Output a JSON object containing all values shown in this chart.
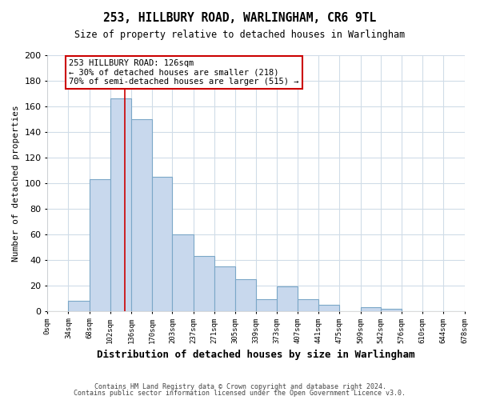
{
  "title": "253, HILLBURY ROAD, WARLINGHAM, CR6 9TL",
  "subtitle": "Size of property relative to detached houses in Warlingham",
  "xlabel": "Distribution of detached houses by size in Warlingham",
  "ylabel": "Number of detached properties",
  "bar_color": "#c8d8ed",
  "bar_edge_color": "#7ba7c8",
  "marker_color": "#cc0000",
  "marker_value": 126,
  "bins_left": [
    0,
    34,
    68,
    102,
    136,
    170,
    203,
    237,
    271,
    305,
    339,
    373,
    407,
    441,
    475,
    509,
    542,
    576,
    610,
    644
  ],
  "bin_widths": [
    34,
    34,
    34,
    34,
    34,
    33,
    34,
    34,
    34,
    34,
    34,
    34,
    34,
    34,
    34,
    33,
    34,
    34,
    34,
    34
  ],
  "counts": [
    0,
    8,
    103,
    166,
    150,
    105,
    60,
    43,
    35,
    25,
    9,
    19,
    9,
    5,
    0,
    3,
    2,
    0,
    0,
    0
  ],
  "tick_labels": [
    "0sqm",
    "34sqm",
    "68sqm",
    "102sqm",
    "136sqm",
    "170sqm",
    "203sqm",
    "237sqm",
    "271sqm",
    "305sqm",
    "339sqm",
    "373sqm",
    "407sqm",
    "441sqm",
    "475sqm",
    "509sqm",
    "542sqm",
    "576sqm",
    "610sqm",
    "644sqm",
    "678sqm"
  ],
  "annotation_title": "253 HILLBURY ROAD: 126sqm",
  "annotation_line1": "← 30% of detached houses are smaller (218)",
  "annotation_line2": "70% of semi-detached houses are larger (515) →",
  "annotation_box_color": "#ffffff",
  "annotation_box_edge": "#cc0000",
  "ylim": [
    0,
    200
  ],
  "yticks": [
    0,
    20,
    40,
    60,
    80,
    100,
    120,
    140,
    160,
    180,
    200
  ],
  "footer1": "Contains HM Land Registry data © Crown copyright and database right 2024.",
  "footer2": "Contains public sector information licensed under the Open Government Licence v3.0.",
  "background_color": "#ffffff",
  "grid_color": "#d0dce8"
}
